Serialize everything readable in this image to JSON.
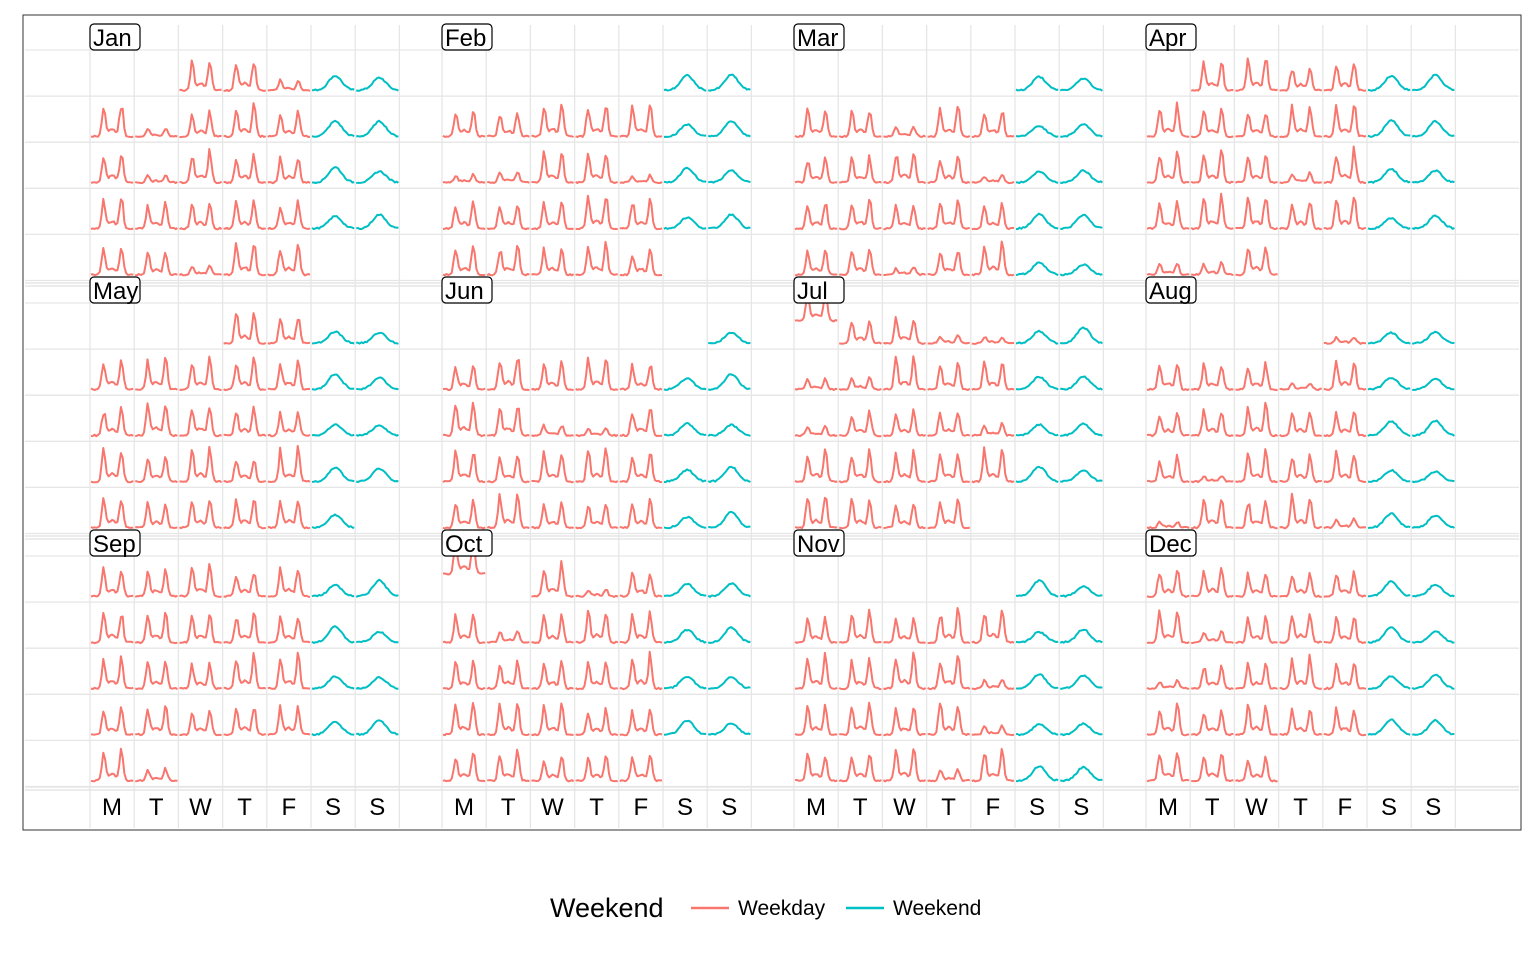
{
  "chart_data": {
    "type": "line",
    "title": "",
    "layout": "calendar",
    "facets": [
      "Jan",
      "Feb",
      "Mar",
      "Apr",
      "May",
      "Jun",
      "Jul",
      "Aug",
      "Sep",
      "Oct",
      "Nov",
      "Dec"
    ],
    "x_tick_labels": [
      "M",
      "T",
      "W",
      "T",
      "F",
      "S",
      "S"
    ],
    "legend": {
      "title": "Weekend",
      "position": "bottom",
      "entries": [
        {
          "name": "Weekday",
          "color": "#F8766D"
        },
        {
          "name": "Weekend",
          "color": "#00BFC4"
        }
      ]
    },
    "year_start_weekday": 2,
    "days_in_month": [
      31,
      28,
      31,
      30,
      31,
      30,
      31,
      31,
      30,
      31,
      30,
      31
    ],
    "grid": true,
    "series": [
      {
        "name": "Weekday",
        "color": "#F8766D",
        "profile": "twin-peak",
        "peak_fraction": [
          0.3,
          0.72
        ]
      },
      {
        "name": "Weekend",
        "color": "#00BFC4",
        "profile": "single-hump",
        "peak_fraction": [
          0.55
        ]
      }
    ]
  }
}
